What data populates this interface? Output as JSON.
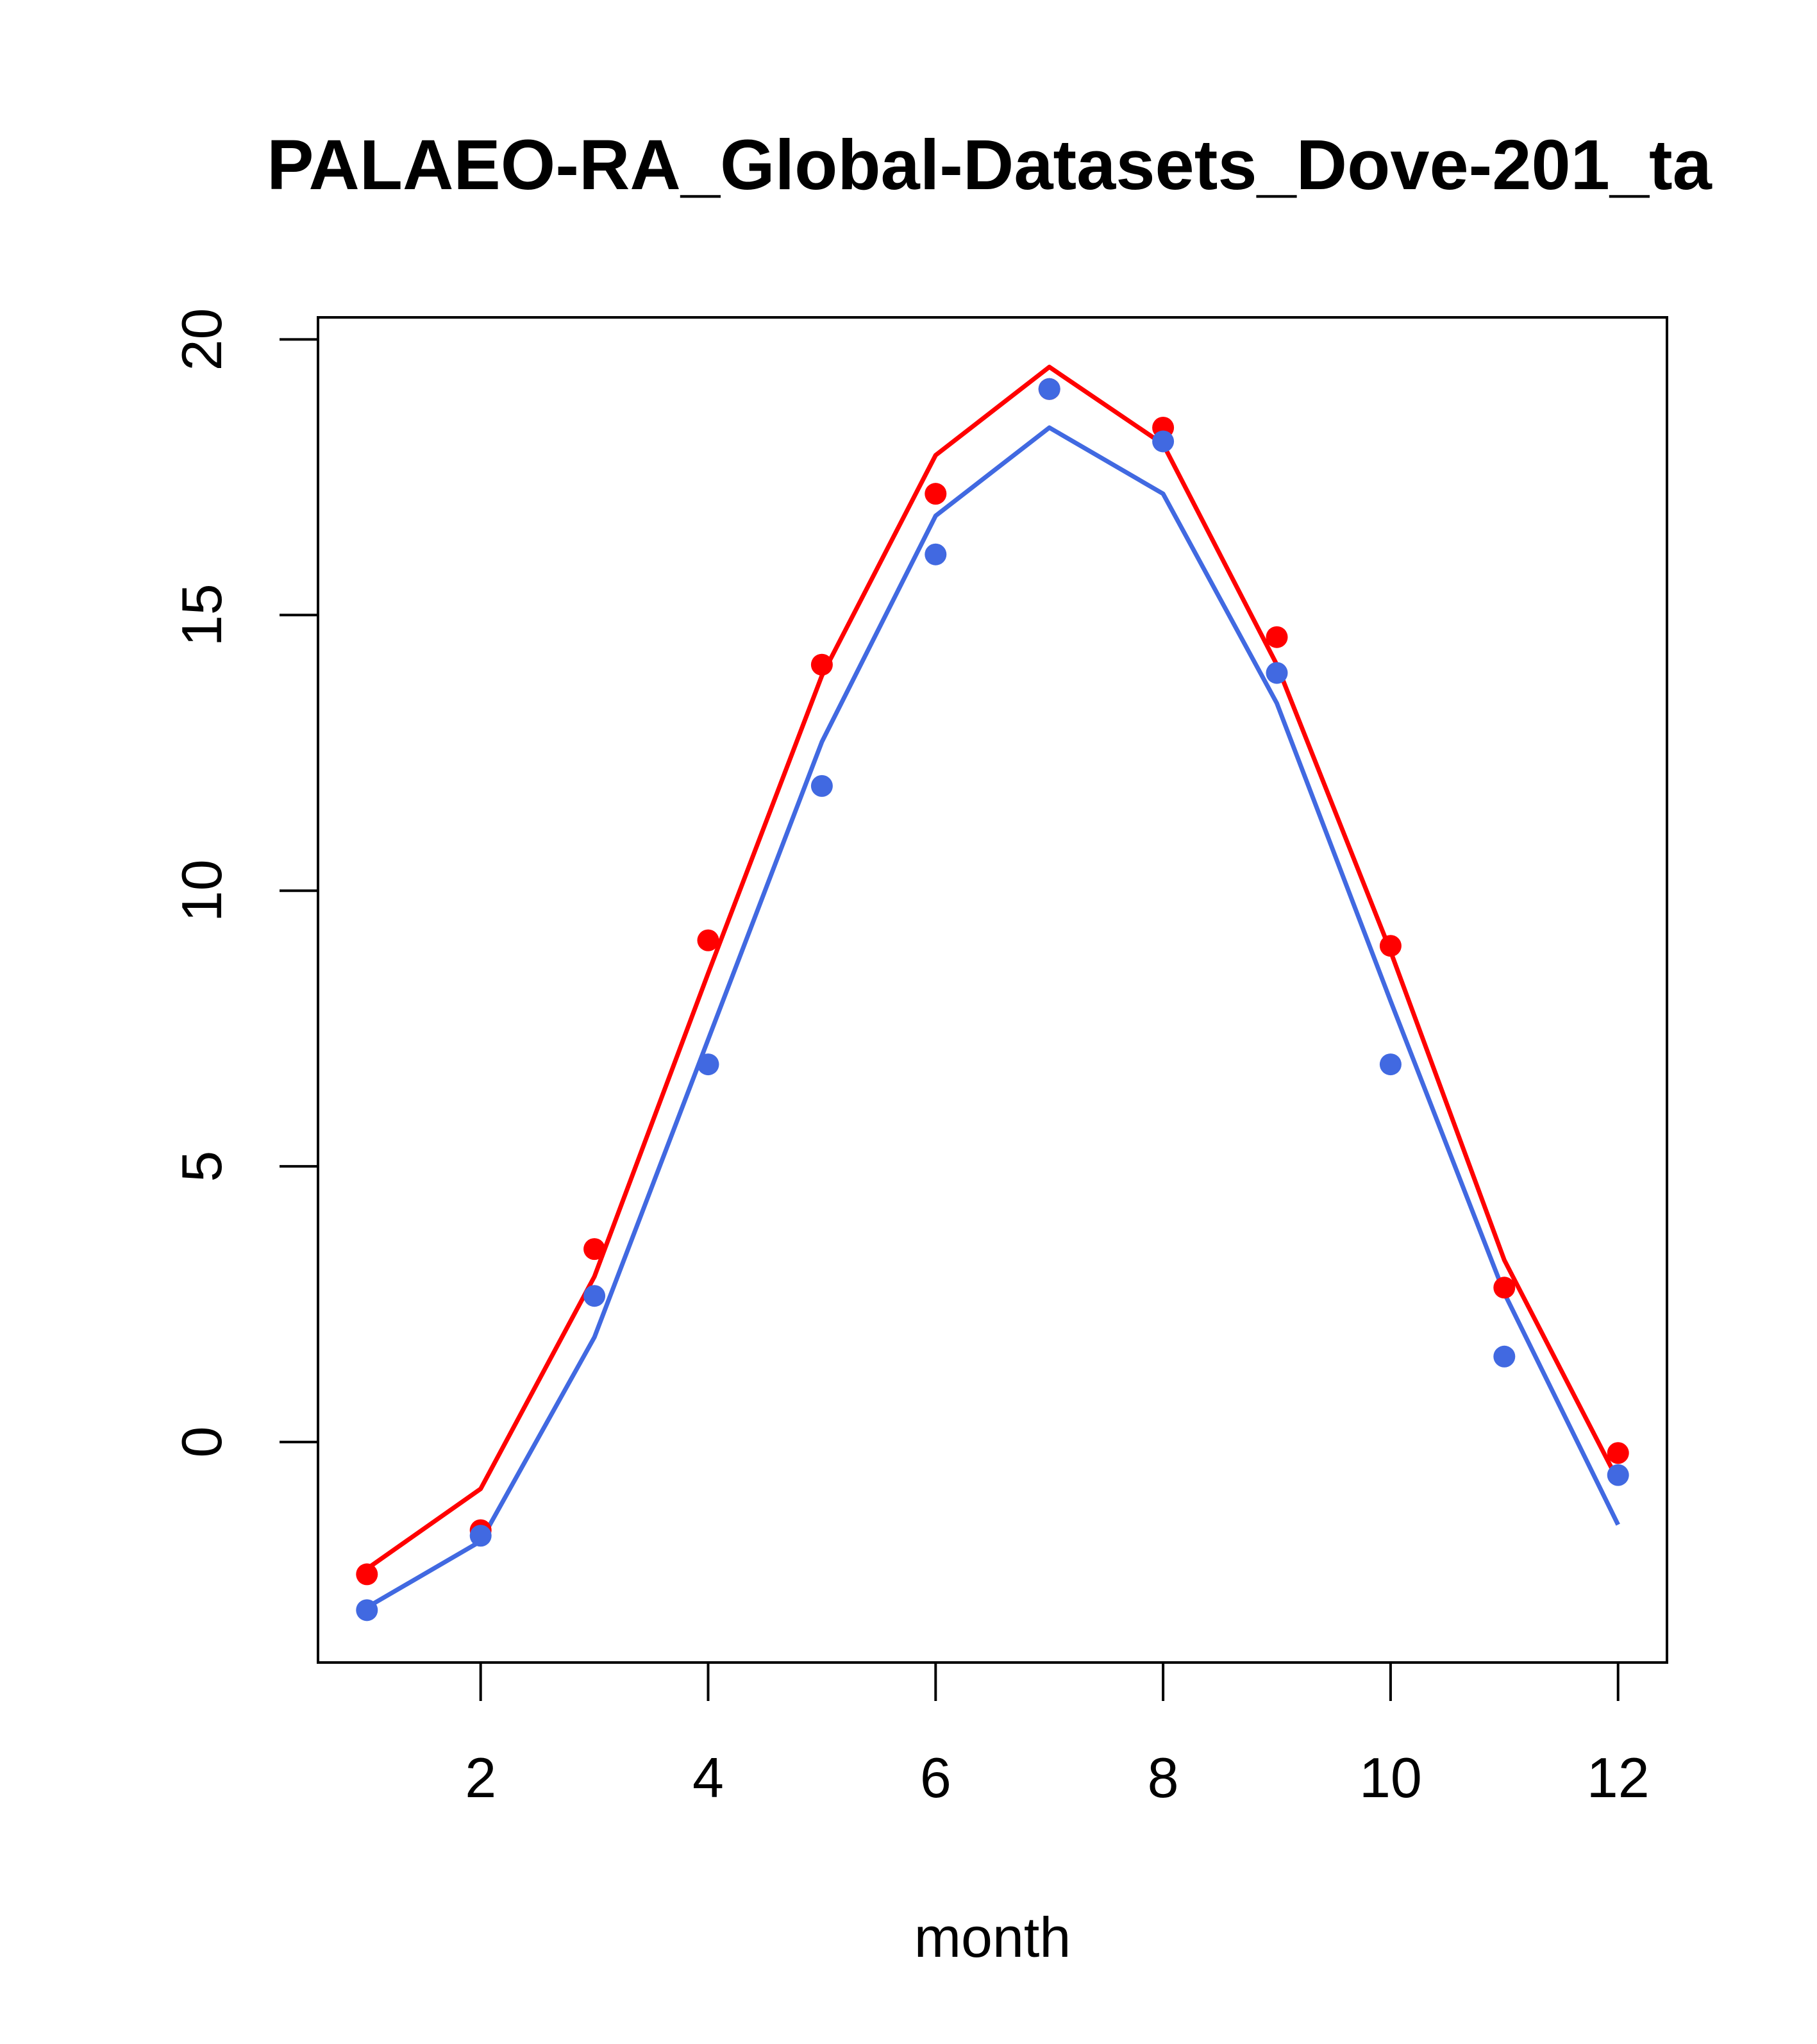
{
  "chart_data": {
    "type": "line",
    "title": "PALAEO-RA_Global-Datasets_Dove-201_ta",
    "xlabel": "month",
    "ylabel": "",
    "xlim": [
      0.57,
      12.43
    ],
    "ylim": [
      -4.0,
      20.4
    ],
    "x_ticks": [
      2,
      4,
      6,
      8,
      10,
      12
    ],
    "y_ticks": [
      0,
      5,
      10,
      15,
      20
    ],
    "x": [
      1,
      2,
      3,
      4,
      5,
      6,
      7,
      8,
      9,
      10,
      11,
      12
    ],
    "series": [
      {
        "name": "red",
        "color": "#FF0000",
        "line": [
          -2.3,
          -0.85,
          3.0,
          8.5,
          13.9,
          17.9,
          19.5,
          18.1,
          14.1,
          8.9,
          3.3,
          -0.7
        ],
        "points": [
          -2.4,
          -1.6,
          3.5,
          9.1,
          14.1,
          17.2,
          19.1,
          18.4,
          14.6,
          9.0,
          2.8,
          -0.2
        ]
      },
      {
        "name": "blue",
        "color": "#4169E1",
        "line": [
          -3.0,
          -1.8,
          1.9,
          7.3,
          12.7,
          16.8,
          18.4,
          17.2,
          13.4,
          8.0,
          2.7,
          -1.5
        ],
        "points": [
          -3.05,
          -1.7,
          2.65,
          6.85,
          11.9,
          16.1,
          19.1,
          18.15,
          13.95,
          6.85,
          1.55,
          -0.6
        ]
      }
    ]
  }
}
